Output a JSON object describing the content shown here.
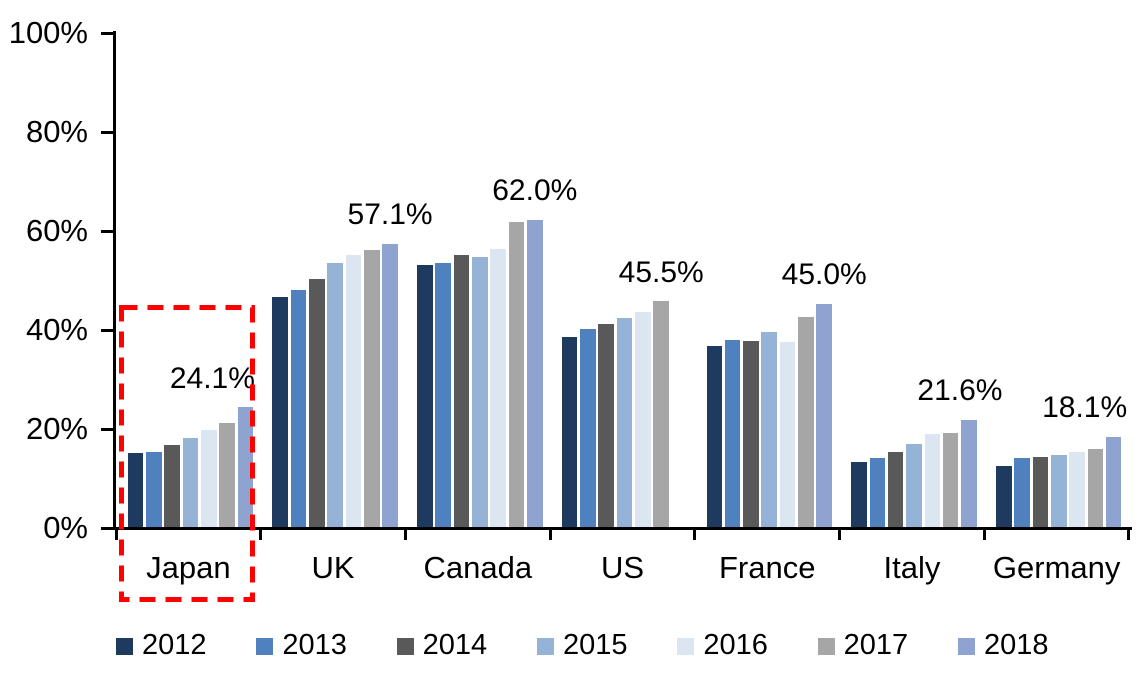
{
  "chart_data": {
    "type": "bar",
    "title": "",
    "xlabel": "",
    "ylabel": "",
    "categories": [
      "Japan",
      "UK",
      "Canada",
      "US",
      "France",
      "Italy",
      "Germany"
    ],
    "series": [
      {
        "name": "2012",
        "color": "#1F3A5F",
        "values": [
          14.8,
          46.4,
          52.8,
          38.2,
          36.4,
          13.0,
          12.3
        ]
      },
      {
        "name": "2013",
        "color": "#4E81BD",
        "values": [
          15.0,
          47.8,
          53.3,
          40.0,
          37.6,
          13.9,
          13.8
        ]
      },
      {
        "name": "2014",
        "color": "#595959",
        "values": [
          16.5,
          50.0,
          54.8,
          40.9,
          37.4,
          15.0,
          14.1
        ]
      },
      {
        "name": "2015",
        "color": "#95B3D7",
        "values": [
          17.8,
          53.2,
          54.4,
          42.1,
          39.2,
          16.7,
          14.5
        ]
      },
      {
        "name": "2016",
        "color": "#DCE6F2",
        "values": [
          19.5,
          54.8,
          56.0,
          43.3,
          37.2,
          18.6,
          15.1
        ]
      },
      {
        "name": "2017",
        "color": "#A6A6A6",
        "values": [
          21.0,
          55.8,
          61.5,
          45.5,
          42.3,
          18.9,
          15.7
        ]
      },
      {
        "name": "2018",
        "color": "#8FA3D1",
        "values": [
          24.1,
          57.1,
          62.0,
          null,
          45.0,
          21.6,
          18.1
        ]
      }
    ],
    "data_labels": [
      {
        "category": "Japan",
        "text": "24.1%"
      },
      {
        "category": "UK",
        "text": "57.1%"
      },
      {
        "category": "Canada",
        "text": "62.0%"
      },
      {
        "category": "US",
        "text": "45.5%"
      },
      {
        "category": "France",
        "text": "45.0%"
      },
      {
        "category": "Italy",
        "text": "21.6%"
      },
      {
        "category": "Germany",
        "text": "18.1%"
      }
    ],
    "y_axis": {
      "ticks": [
        "0%",
        "20%",
        "40%",
        "60%",
        "80%",
        "100%"
      ],
      "min": 0,
      "max": 100,
      "grid": false
    },
    "legend": {
      "position": "bottom",
      "entries": [
        "2012",
        "2013",
        "2014",
        "2015",
        "2016",
        "2017",
        "2018"
      ]
    },
    "highlight": {
      "category": "Japan",
      "style": "dashed-box",
      "color": "#FF0000"
    }
  }
}
